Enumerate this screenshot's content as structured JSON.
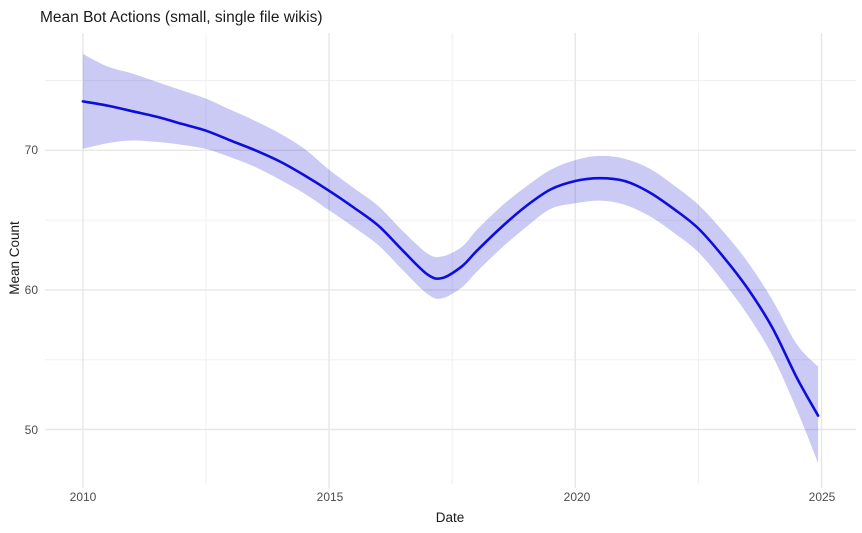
{
  "chart_data": {
    "type": "line",
    "title": "Mean Bot Actions (small, single file wikis)",
    "xlabel": "Date",
    "ylabel": "Mean Count",
    "legend": "none",
    "grid": "major+minor",
    "background": "#FFFFFF",
    "x_axis": {
      "range": [
        2009.23,
        2025.7
      ],
      "ticks": [
        2010,
        2015,
        2020,
        2025
      ],
      "tick_labels": [
        "2010",
        "2015",
        "2020",
        "2025"
      ],
      "minor_ticks": [
        2012.5,
        2017.5,
        2022.5
      ]
    },
    "y_axis": {
      "range": [
        46.1,
        78.4
      ],
      "ticks": [
        70,
        60,
        50
      ],
      "tick_labels": [
        "70",
        "60",
        "50"
      ],
      "minor_ticks": [
        55,
        65,
        75
      ]
    },
    "series": [
      {
        "name": "mean-bot-actions-smooth",
        "style": "smooth line with confidence band",
        "x": [
          2010,
          2010.5,
          2011,
          2011.5,
          2012,
          2012.5,
          2013,
          2013.5,
          2014,
          2014.5,
          2015,
          2015.5,
          2016,
          2016.5,
          2017,
          2017.3,
          2017.7,
          2018,
          2018.5,
          2019,
          2019.5,
          2020,
          2020.5,
          2021,
          2021.5,
          2022,
          2022.5,
          2023,
          2023.5,
          2024,
          2024.5,
          2024.93
        ],
        "y": [
          73.5,
          73.2,
          72.8,
          72.4,
          71.9,
          71.4,
          70.7,
          70.0,
          69.2,
          68.2,
          67.1,
          65.9,
          64.6,
          62.8,
          61.1,
          60.85,
          61.7,
          62.8,
          64.5,
          66.0,
          67.2,
          67.8,
          68.0,
          67.8,
          67.0,
          65.8,
          64.4,
          62.4,
          60.1,
          57.3,
          53.7,
          51.0
        ],
        "y_lower": [
          70.1,
          70.5,
          70.7,
          70.6,
          70.4,
          70.1,
          69.5,
          68.8,
          67.9,
          66.9,
          65.7,
          64.5,
          63.2,
          61.4,
          59.7,
          59.4,
          60.2,
          61.3,
          63.0,
          64.5,
          65.8,
          66.2,
          66.4,
          66.1,
          65.3,
          64.1,
          62.7,
          60.6,
          58.2,
          55.3,
          51.4,
          47.6
        ],
        "y_upper": [
          76.9,
          76.0,
          75.5,
          74.9,
          74.3,
          73.7,
          72.9,
          72.1,
          71.2,
          70.1,
          68.6,
          67.3,
          66.0,
          64.2,
          62.6,
          62.4,
          63.1,
          64.3,
          66.0,
          67.4,
          68.6,
          69.3,
          69.6,
          69.4,
          68.7,
          67.5,
          66.1,
          64.2,
          62.0,
          59.3,
          56.1,
          54.5
        ]
      }
    ],
    "colors": {
      "line": "#0E0EDA",
      "band_fill": "#2020D6",
      "band_opacity": 0.24,
      "grid_major": "#E7E7E7",
      "grid_minor": "#F0F0F0",
      "title_text": "#1A1A1A",
      "tick_text": "#4D4D4D"
    }
  }
}
